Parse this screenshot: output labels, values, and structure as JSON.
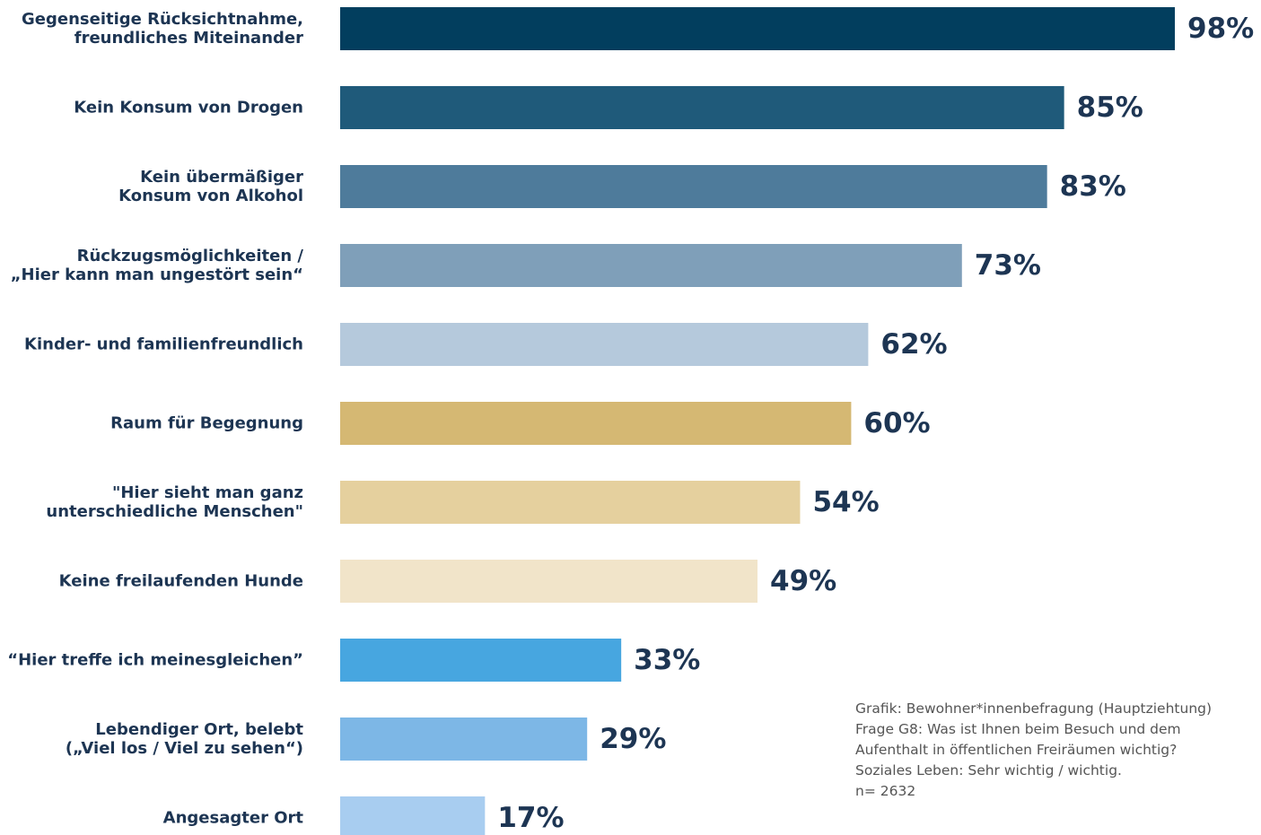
{
  "chart_data": {
    "type": "bar",
    "orientation": "horizontal",
    "categories": [
      "Gegenseitige Rücksichtnahme,\nfreundliches Miteinander",
      "Kein Konsum von Drogen",
      "Kein übermäßiger\nKonsum von Alkohol",
      "Rückzugsmöglichkeiten /\n„Hier kann man ungestört sein“",
      "Kinder- und familienfreundlich",
      "Raum für Begegnung",
      "\"Hier sieht man ganz\nunterschiedliche Menschen\"",
      "Keine freilaufenden Hunde",
      "“Hier treffe ich meinesgleichen”",
      "Lebendiger Ort, belebt\n(„Viel los / Viel zu sehen“)",
      "Angesagter Ort"
    ],
    "values": [
      98,
      85,
      83,
      73,
      62,
      60,
      54,
      49,
      33,
      29,
      17
    ],
    "value_labels": [
      "98%",
      "85%",
      "83%",
      "73%",
      "62%",
      "60%",
      "54%",
      "49%",
      "33%",
      "29%",
      "17%"
    ],
    "colors": [
      "#023e5e",
      "#1f5a7a",
      "#4e7b9b",
      "#7f9fb9",
      "#b5c9dc",
      "#d5b873",
      "#e5d09e",
      "#f1e4c9",
      "#47a6e0",
      "#7db7e6",
      "#a8cdf0"
    ],
    "xlim": [
      0,
      100
    ],
    "note": [
      "Grafik: Bewohner*innenbefragung (Hauptziehtung)",
      "Frage G8: Was ist Ihnen beim Besuch und dem",
      "Aufenthalt in öffentlichen Freiräumen wichtig?",
      "Soziales Leben: Sehr wichtig / wichtig.",
      "n= 2632"
    ]
  }
}
